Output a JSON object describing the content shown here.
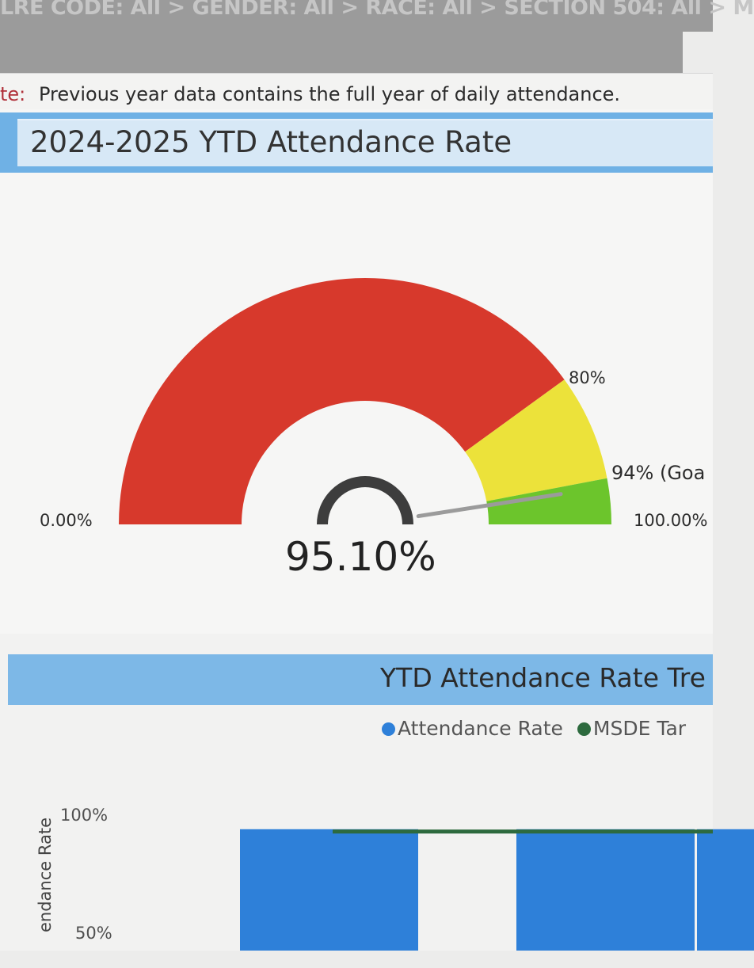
{
  "breadcrumb": {
    "text": "LRE CODE: All > GENDER: All > RACE: All > SECTION 504: All > M"
  },
  "note": {
    "label": "te:",
    "text": "Previous year data contains the full year of daily attendance."
  },
  "gauge": {
    "title": "2024-2025 YTD Attendance Rate",
    "value_text": "95.10%",
    "value": 95.1,
    "min_label": "0.00%",
    "max_label": "100.00%",
    "band_red_end_label": "80%",
    "goal_label": "94% (Goa",
    "bands": [
      {
        "from": 0,
        "to": 80,
        "color": "#d7392c"
      },
      {
        "from": 80,
        "to": 94,
        "color": "#ece23a"
      },
      {
        "from": 94,
        "to": 100,
        "color": "#6cc52c"
      }
    ]
  },
  "trend": {
    "title": "YTD Attendance Rate Tre",
    "legend": [
      {
        "label": "Attendance Rate",
        "color": "#2e80d9"
      },
      {
        "label": "MSDE Tar",
        "color": "#2d6a3e"
      }
    ],
    "y_axis_label": "endance Rate",
    "y_ticks": [
      "100%",
      "50%"
    ]
  },
  "chart_data": {
    "type": "bar",
    "ylabel": "endance Rate",
    "ylim": [
      0,
      100
    ],
    "series": [
      {
        "name": "Attendance Rate",
        "values": [
          95,
          95,
          95
        ]
      }
    ],
    "target_line": {
      "name": "MSDE Tar",
      "value": 94
    }
  }
}
